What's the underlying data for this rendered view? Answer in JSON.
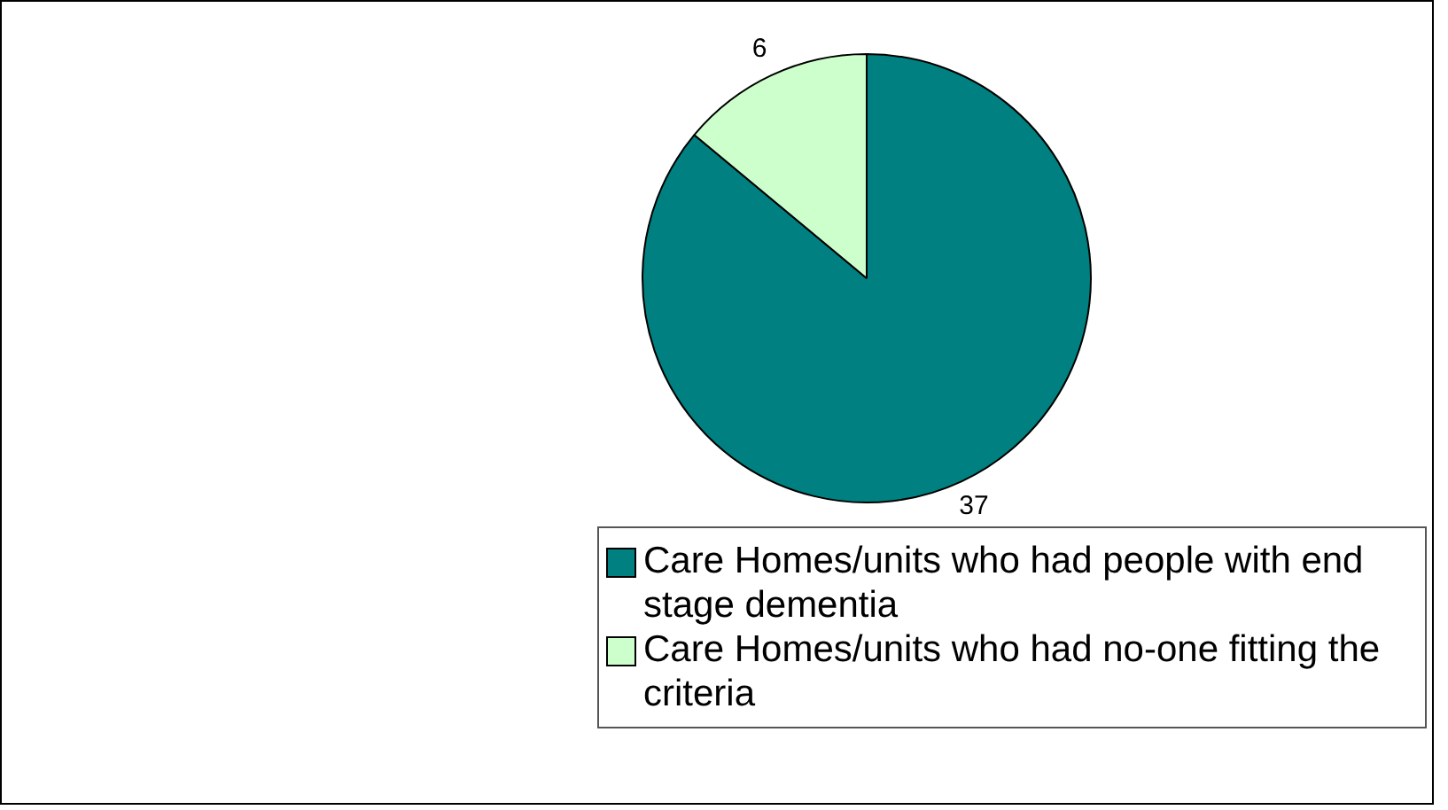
{
  "chart_data": {
    "type": "pie",
    "categories": [
      "Care Homes/units who had people with end stage dementia",
      "Care Homes/units who had no-one fitting the criteria"
    ],
    "values": [
      37,
      6
    ],
    "colors": [
      "#008080",
      "#ccffcc"
    ],
    "data_labels": true,
    "legend": "bottom"
  }
}
